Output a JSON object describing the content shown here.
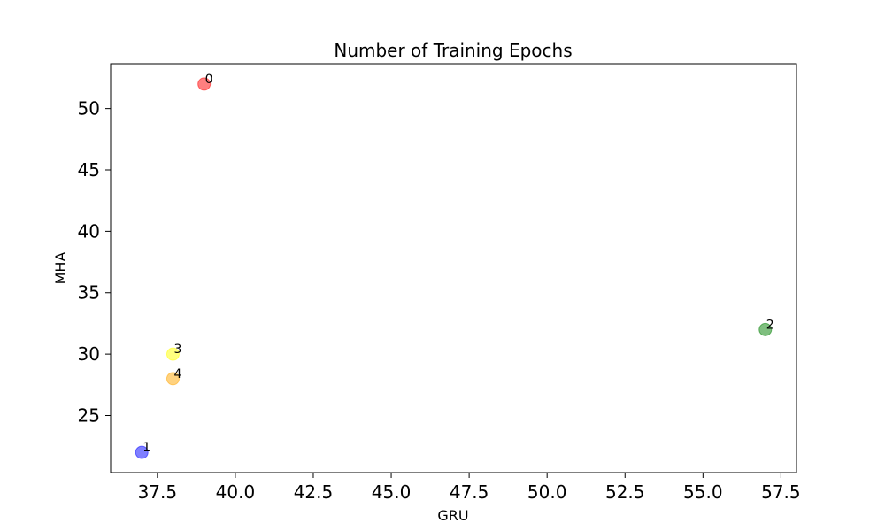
{
  "chart_data": {
    "type": "scatter",
    "title": "Number of Training Epochs",
    "xlabel": "GRU",
    "ylabel": "MHA",
    "xlim": [
      36.0,
      58.0
    ],
    "ylim": [
      20.35,
      53.65
    ],
    "xticks": [
      37.5,
      40.0,
      42.5,
      45.0,
      47.5,
      50.0,
      52.5,
      55.0,
      57.5
    ],
    "xtick_labels": [
      "37.5",
      "40.0",
      "42.5",
      "45.0",
      "47.5",
      "50.0",
      "52.5",
      "55.0",
      "57.5"
    ],
    "yticks": [
      25,
      30,
      35,
      40,
      45,
      50
    ],
    "ytick_labels": [
      "25",
      "30",
      "35",
      "40",
      "45",
      "50"
    ],
    "grid": false,
    "points": [
      {
        "label": "0",
        "x": 39,
        "y": 52,
        "color": "#ff0000"
      },
      {
        "label": "1",
        "x": 37,
        "y": 22,
        "color": "#0000ff"
      },
      {
        "label": "2",
        "x": 57,
        "y": 32,
        "color": "#008000"
      },
      {
        "label": "3",
        "x": 38,
        "y": 30,
        "color": "#ffff00"
      },
      {
        "label": "4",
        "x": 38,
        "y": 28,
        "color": "#ffa500"
      }
    ]
  }
}
